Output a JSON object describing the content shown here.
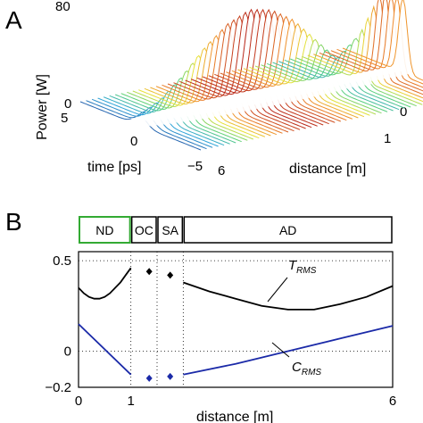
{
  "chart_data": [
    {
      "type": "surface",
      "panel_label": "A",
      "ylabel": "Power [W]",
      "xlabel": "time [ps]",
      "zlabel": "distance [m]",
      "power_ticks": [
        "80",
        "0"
      ],
      "time_ticks": [
        "5",
        "0",
        "−5"
      ],
      "distance_ticks": [
        "0",
        "1",
        "6"
      ],
      "power_range": [
        0,
        80
      ],
      "time_range": [
        -5,
        5
      ],
      "distance_range": [
        0,
        6
      ],
      "pulse_peak_power": [
        {
          "x": 0.0,
          "p": 8
        },
        {
          "x": 0.5,
          "p": 18
        },
        {
          "x": 1.0,
          "p": 35
        },
        {
          "x": 1.5,
          "p": 55
        },
        {
          "x": 2.0,
          "p": 70
        },
        {
          "x": 2.5,
          "p": 78
        },
        {
          "x": 3.0,
          "p": 74
        },
        {
          "x": 3.5,
          "p": 62
        },
        {
          "x": 4.0,
          "p": 42
        },
        {
          "x": 4.5,
          "p": 22
        },
        {
          "x": 5.0,
          "p": 38
        },
        {
          "x": 5.5,
          "p": 70
        },
        {
          "x": 6.0,
          "p": 62
        }
      ],
      "colorscale": [
        "#1f2a8a",
        "#2fa4d8",
        "#5ad07a",
        "#e8e23a",
        "#f08a2a",
        "#b01818"
      ]
    },
    {
      "type": "line",
      "panel_label": "B",
      "xlabel": "distance [m]",
      "xlim": [
        0,
        6
      ],
      "ylim": [
        -0.2,
        0.55
      ],
      "x_ticks": [
        "0",
        "1",
        "6"
      ],
      "y_ticks": [
        "0.5",
        "0",
        "−0.2"
      ],
      "segments": [
        {
          "label": "ND",
          "range": [
            0,
            1
          ],
          "color": "#33aa33"
        },
        {
          "label": "OC",
          "range": [
            1,
            1.5
          ],
          "color": "#000000"
        },
        {
          "label": "SA",
          "range": [
            1.5,
            2.0
          ],
          "color": "#000000"
        },
        {
          "label": "AD",
          "range": [
            2.0,
            6
          ],
          "color": "#000000"
        }
      ],
      "series": [
        {
          "name": "T_RMS",
          "label_main": "T",
          "label_sub": "RMS",
          "color": "#000000",
          "x": [
            0,
            0.1,
            0.2,
            0.3,
            0.4,
            0.5,
            0.6,
            0.7,
            0.8,
            0.9,
            1.0,
            2.0,
            2.5,
            3.0,
            3.5,
            4.0,
            4.5,
            5.0,
            5.5,
            6.0
          ],
          "y": [
            0.35,
            0.32,
            0.3,
            0.29,
            0.29,
            0.3,
            0.32,
            0.35,
            0.38,
            0.42,
            0.46,
            0.38,
            0.33,
            0.29,
            0.25,
            0.23,
            0.23,
            0.26,
            0.3,
            0.36
          ]
        },
        {
          "name": "C_RMS",
          "label_main": "C",
          "label_sub": "RMS",
          "color": "#1b2aa8",
          "x": [
            0,
            1.0,
            2.0,
            3.0,
            4.0,
            5.0,
            6.0
          ],
          "y": [
            0.15,
            -0.13,
            -0.13,
            -0.07,
            0.0,
            0.07,
            0.14
          ]
        }
      ],
      "markers": [
        {
          "x": 1.35,
          "y": 0.44,
          "color": "#000000"
        },
        {
          "x": 1.75,
          "y": 0.42,
          "color": "#000000"
        },
        {
          "x": 1.35,
          "y": -0.15,
          "color": "#1b2aa8"
        },
        {
          "x": 1.75,
          "y": -0.14,
          "color": "#1b2aa8"
        }
      ]
    }
  ]
}
